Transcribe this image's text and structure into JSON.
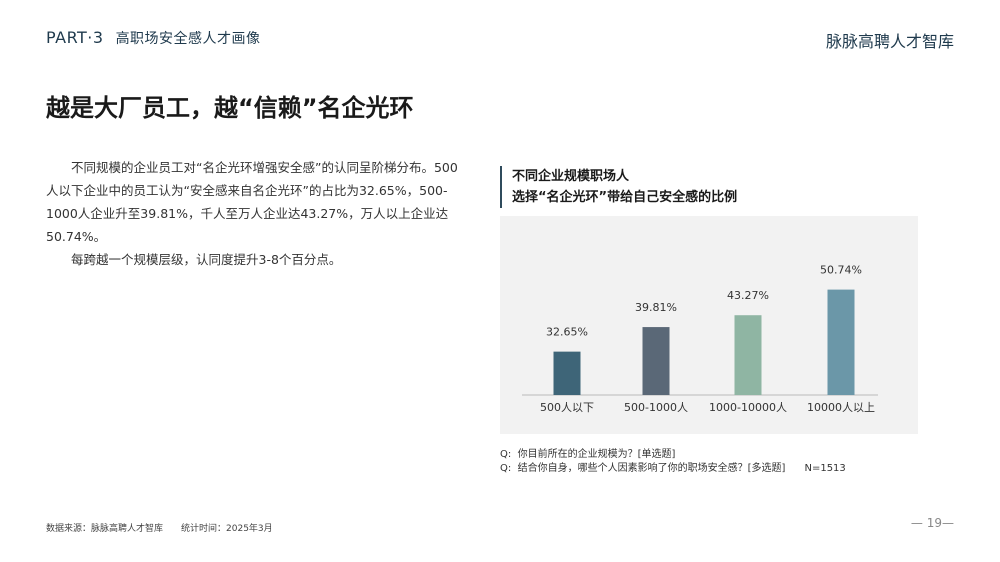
{
  "header": {
    "part": "PART·3",
    "section": "高职场安全感人才画像",
    "brand": "脉脉高聘人才智库"
  },
  "headline": "越是大厂员工，越“信赖”名企光环",
  "body": {
    "p1": "不同规模的企业员工对“名企光环增强安全感”的认同呈阶梯分布。500人以下企业中的员工认为“安全感来自名企光环”的占比为32.65%，500-1000人企业升至39.81%，千人至万人企业达43.27%，万人以上企业达50.74%。",
    "p2": "每跨越一个规模层级，认同度提升3-8个百分点。"
  },
  "chart_data": {
    "type": "bar",
    "title_line1": "不同企业规模职场人",
    "title_line2": "选择“名企光环”带给自己安全感的比例",
    "categories": [
      "500人以下",
      "500-1000人",
      "1000-10000人",
      "10000人以上"
    ],
    "values": [
      32.65,
      39.81,
      43.27,
      50.74
    ],
    "value_labels": [
      "32.65%",
      "39.81%",
      "43.27%",
      "50.74%"
    ],
    "colors": [
      "#3e6578",
      "#5a6877",
      "#8fb5a3",
      "#6b97a8"
    ],
    "ylim": [
      20,
      55
    ],
    "grid": false
  },
  "notes": {
    "q1": "Q:  你目前所在的企业规模为？[单选题]",
    "q2": "Q:  结合你自身，哪些个人因素影响了你的职场安全感？[多选题]      N=1513"
  },
  "footer": {
    "source": "数据来源：脉脉高聘人才智库",
    "time": "统计时间：2025年3月",
    "page": "— 19—"
  }
}
